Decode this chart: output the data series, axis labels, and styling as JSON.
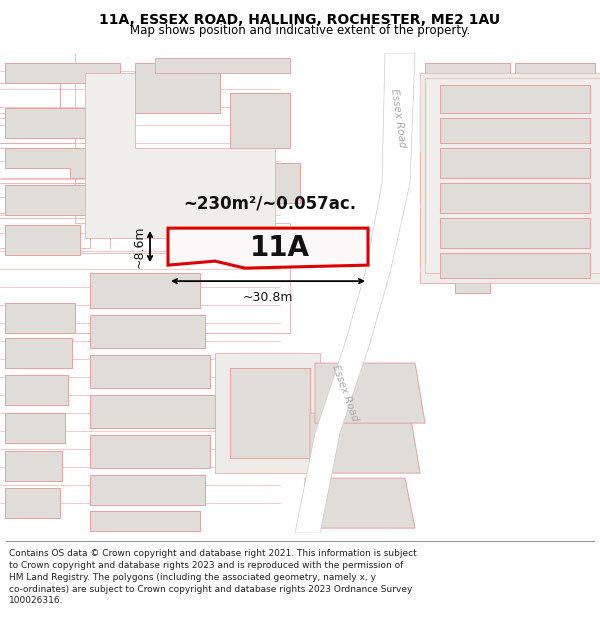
{
  "title": "11A, ESSEX ROAD, HALLING, ROCHESTER, ME2 1AU",
  "subtitle": "Map shows position and indicative extent of the property.",
  "footer": "Contains OS data © Crown copyright and database right 2021. This information is subject\nto Crown copyright and database rights 2023 and is reproduced with the permission of\nHM Land Registry. The polygons (including the associated geometry, namely x, y\nco-ordinates) are subject to Crown copyright and database rights 2023 Ordnance Survey\n100026316.",
  "area_text": "~230m²/~0.057ac.",
  "label": "11A",
  "dim_width": "~30.8m",
  "dim_height": "~8.6m",
  "map_bg": "#f8f7f5",
  "highlight_color": "#dd0000",
  "building_fill": "#e0ddd8",
  "building_edge": "#e8a0a0",
  "parcel_edge": "#e8a0a0",
  "road_color": "#ffffff",
  "road_label_color": "#aaaaaa",
  "road_label": "Essex Road",
  "title_fontsize": 10,
  "subtitle_fontsize": 8.5,
  "footer_fontsize": 6.5
}
